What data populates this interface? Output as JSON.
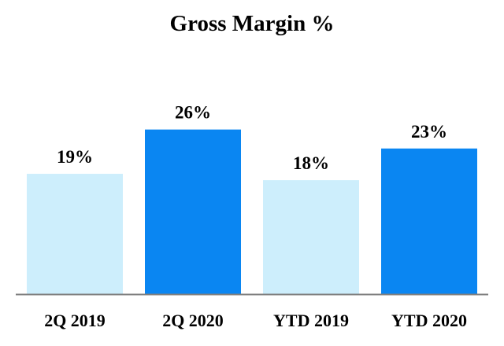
{
  "chart_data": {
    "type": "bar",
    "title": "Gross Margin %",
    "categories": [
      "2Q 2019",
      "2Q 2020",
      "YTD 2019",
      "YTD 2020"
    ],
    "values": [
      19,
      26,
      18,
      23
    ],
    "value_labels": [
      "19%",
      "26%",
      "18%",
      "23%"
    ],
    "bar_colors": [
      "#cdeefc",
      "#0a86f2",
      "#cdeefc",
      "#0a86f2"
    ],
    "axis_color": "#7f7f7f",
    "ylim": [
      0,
      32
    ],
    "grid": false,
    "legend": "none"
  }
}
